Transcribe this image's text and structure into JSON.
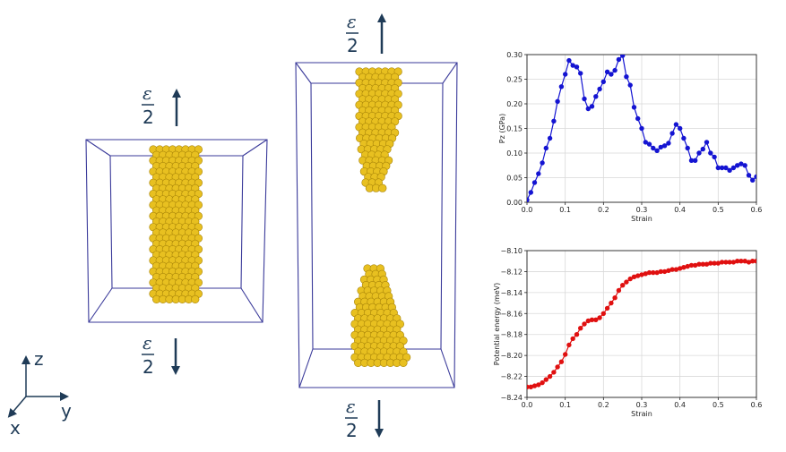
{
  "strain_labels": {
    "numerator": "ε",
    "denominator": "2"
  },
  "axes_triad": {
    "z": "z",
    "y": "y",
    "x": "x"
  },
  "colors": {
    "atoms": "#e8c020",
    "atoms_edge": "#a78308",
    "box": "#3a3a9a",
    "arrow": "#1f3b57",
    "pressure_series": "#1414d2",
    "energy_series": "#e01010",
    "grid": "#d9d9d9"
  },
  "chart_data": [
    {
      "type": "line",
      "xlabel": "Strain",
      "ylabel": "Pz (GPa)",
      "xlim": [
        0,
        0.6
      ],
      "ylim": [
        0,
        0.3
      ],
      "grid": true,
      "xticks": [
        "0.0",
        "0.1",
        "0.2",
        "0.3",
        "0.4",
        "0.5",
        "0.6"
      ],
      "yticks": [
        "0.00",
        "0.05",
        "0.10",
        "0.15",
        "0.20",
        "0.25",
        "0.30"
      ],
      "x": [
        0.0,
        0.01,
        0.02,
        0.03,
        0.04,
        0.05,
        0.06,
        0.07,
        0.08,
        0.09,
        0.1,
        0.11,
        0.12,
        0.13,
        0.14,
        0.15,
        0.16,
        0.17,
        0.18,
        0.19,
        0.2,
        0.21,
        0.22,
        0.23,
        0.24,
        0.25,
        0.26,
        0.27,
        0.28,
        0.29,
        0.3,
        0.31,
        0.32,
        0.33,
        0.34,
        0.35,
        0.36,
        0.37,
        0.38,
        0.39,
        0.4,
        0.41,
        0.42,
        0.43,
        0.44,
        0.45,
        0.46,
        0.47,
        0.48,
        0.49,
        0.5,
        0.51,
        0.52,
        0.53,
        0.54,
        0.55,
        0.56,
        0.57,
        0.58,
        0.59,
        0.6
      ],
      "series": [
        {
          "values": [
            0.005,
            0.02,
            0.04,
            0.058,
            0.08,
            0.11,
            0.13,
            0.165,
            0.205,
            0.235,
            0.26,
            0.288,
            0.278,
            0.275,
            0.262,
            0.21,
            0.19,
            0.195,
            0.215,
            0.23,
            0.245,
            0.265,
            0.26,
            0.268,
            0.29,
            0.298,
            0.255,
            0.238,
            0.193,
            0.17,
            0.15,
            0.122,
            0.118,
            0.11,
            0.105,
            0.112,
            0.115,
            0.12,
            0.14,
            0.158,
            0.15,
            0.13,
            0.11,
            0.085,
            0.085,
            0.1,
            0.108,
            0.122,
            0.1,
            0.092,
            0.07,
            0.07,
            0.07,
            0.065,
            0.07,
            0.075,
            0.078,
            0.075,
            0.055,
            0.045,
            0.052
          ]
        }
      ]
    },
    {
      "type": "line",
      "xlabel": "Strain",
      "ylabel": "Potential energy (meV)",
      "xlim": [
        0,
        0.6
      ],
      "ylim": [
        -8.24,
        -8.1
      ],
      "grid": true,
      "xticks": [
        "0.0",
        "0.1",
        "0.2",
        "0.3",
        "0.4",
        "0.5",
        "0.6"
      ],
      "yticks": [
        "−8.24",
        "−8.22",
        "−8.20",
        "−8.18",
        "−8.16",
        "−8.14",
        "−8.12",
        "−8.10"
      ],
      "x": [
        0.0,
        0.01,
        0.02,
        0.03,
        0.04,
        0.05,
        0.06,
        0.07,
        0.08,
        0.09,
        0.1,
        0.11,
        0.12,
        0.13,
        0.14,
        0.15,
        0.16,
        0.17,
        0.18,
        0.19,
        0.2,
        0.21,
        0.22,
        0.23,
        0.24,
        0.25,
        0.26,
        0.27,
        0.28,
        0.29,
        0.3,
        0.31,
        0.32,
        0.33,
        0.34,
        0.35,
        0.36,
        0.37,
        0.38,
        0.39,
        0.4,
        0.41,
        0.42,
        0.43,
        0.44,
        0.45,
        0.46,
        0.47,
        0.48,
        0.49,
        0.5,
        0.51,
        0.52,
        0.53,
        0.54,
        0.55,
        0.56,
        0.57,
        0.58,
        0.59,
        0.6
      ],
      "series": [
        {
          "values": [
            -8.23,
            -8.23,
            -8.229,
            -8.228,
            -8.226,
            -8.223,
            -8.22,
            -8.216,
            -8.211,
            -8.206,
            -8.199,
            -8.19,
            -8.184,
            -8.18,
            -8.174,
            -8.17,
            -8.167,
            -8.166,
            -8.166,
            -8.164,
            -8.16,
            -8.155,
            -8.15,
            -8.145,
            -8.138,
            -8.133,
            -8.13,
            -8.127,
            -8.125,
            -8.124,
            -8.123,
            -8.122,
            -8.121,
            -8.121,
            -8.121,
            -8.12,
            -8.12,
            -8.119,
            -8.118,
            -8.118,
            -8.117,
            -8.116,
            -8.115,
            -8.114,
            -8.114,
            -8.113,
            -8.113,
            -8.113,
            -8.112,
            -8.112,
            -8.112,
            -8.111,
            -8.111,
            -8.111,
            -8.111,
            -8.11,
            -8.11,
            -8.11,
            -8.111,
            -8.11,
            -8.11
          ]
        }
      ]
    }
  ]
}
